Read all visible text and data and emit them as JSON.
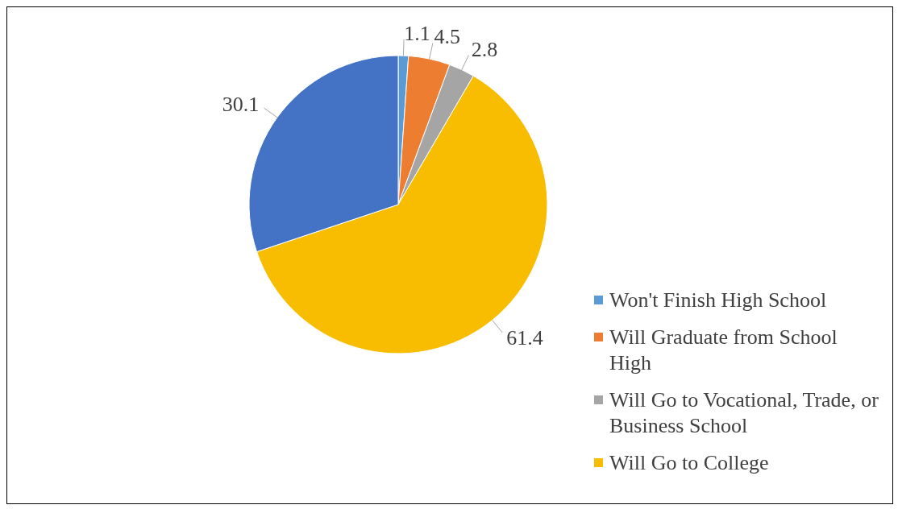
{
  "chart_data": {
    "type": "pie",
    "categories": [
      "Won't Finish High School",
      "Will Graduate from School High",
      "Will Go to Vocational, Trade, or   Business School",
      "Will Go to College",
      null
    ],
    "values": [
      1.1,
      4.5,
      2.8,
      61.4,
      30.1
    ],
    "colors": [
      "#5b9bd5",
      "#ed7d31",
      "#a5a5a5",
      "#f8bd00",
      "#4472c4"
    ],
    "data_labels": true,
    "legend": "bottom right"
  }
}
